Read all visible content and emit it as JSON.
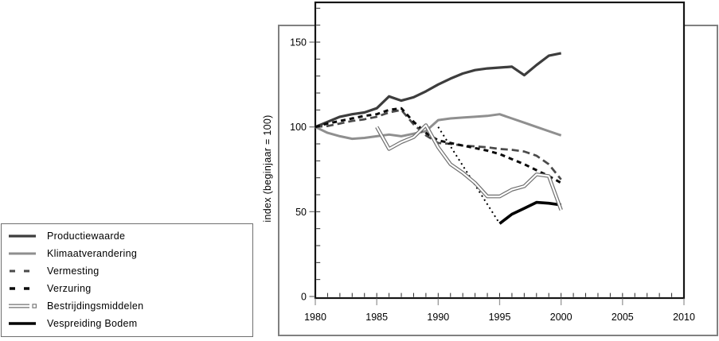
{
  "figure": {
    "background": "#ffffff",
    "frame_color": "#808080",
    "axis_color": "#1a1a1a"
  },
  "legend": {
    "items": [
      {
        "label": "Productiewaarde"
      },
      {
        "label": "Klimaatverandering"
      },
      {
        "label": "Vermesting"
      },
      {
        "label": "Verzuring"
      },
      {
        "label": "Bestrijdingsmiddelen"
      },
      {
        "label": "Vespreiding Bodem"
      }
    ]
  },
  "chart_data": {
    "type": "line",
    "title": "",
    "xlabel": "",
    "ylabel": "index (beginjaar = 100)",
    "xlim": [
      1980,
      2010
    ],
    "ylim": [
      0,
      173
    ],
    "x_ticks": [
      1980,
      1985,
      1990,
      1995,
      2000,
      2005,
      2010
    ],
    "y_ticks": [
      0,
      50,
      100,
      150
    ],
    "x_minor_step": 1,
    "y_minor_step": 10,
    "grid": false,
    "legend_position": "outside-bottom-left",
    "series": [
      {
        "name": "Productiewaarde",
        "style": "solid",
        "color": "#3d3d3d",
        "width": 3.2,
        "x": [
          1980,
          1981,
          1982,
          1983,
          1984,
          1985,
          1986,
          1987,
          1988,
          1989,
          1990,
          1991,
          1992,
          1993,
          1994,
          1995,
          1996,
          1997,
          1998,
          1999,
          2000
        ],
        "y": [
          100,
          103,
          106,
          107.5,
          108.5,
          111,
          118,
          115.5,
          117.5,
          121,
          125,
          128.5,
          131.5,
          133.5,
          134.5,
          135,
          135.5,
          130.5,
          136.5,
          142,
          143.5
        ]
      },
      {
        "name": "Klimaatverandering",
        "style": "solid",
        "color": "#8f8f8f",
        "width": 3,
        "x": [
          1980,
          1981,
          1982,
          1983,
          1984,
          1985,
          1986,
          1987,
          1988,
          1989,
          1990,
          1991,
          1992,
          1993,
          1994,
          1995,
          1996,
          1997,
          1998,
          1999,
          2000
        ],
        "y": [
          100,
          96.5,
          94.5,
          93,
          93.5,
          94.5,
          95.5,
          94.5,
          96,
          97.5,
          104,
          105,
          105.5,
          106,
          106.5,
          107.5,
          105,
          102.5,
          100,
          97.5,
          95
        ]
      },
      {
        "name": "Vermesting",
        "style": "dashed",
        "color": "#4a4a4a",
        "width": 2.7,
        "dash": "9,5",
        "x": [
          1980,
          1981,
          1982,
          1983,
          1984,
          1985,
          1986,
          1987,
          1988,
          1989,
          1990,
          1991,
          1992,
          1993,
          1994,
          1995,
          1996,
          1997,
          1998,
          1999,
          2000
        ],
        "y": [
          100,
          100.5,
          102,
          103.5,
          104.5,
          106,
          108.5,
          110,
          101.5,
          95,
          90.5,
          90,
          89,
          88.5,
          88,
          87,
          86.5,
          85.5,
          83,
          78,
          69
        ]
      },
      {
        "name": "Verzuring",
        "style": "dashed",
        "color": "#0a0a0a",
        "width": 3,
        "dash": "6,5",
        "x": [
          1980,
          1981,
          1982,
          1983,
          1984,
          1985,
          1986,
          1987,
          1988,
          1989,
          1990,
          1991,
          1992,
          1993,
          1994,
          1995,
          1996,
          1997,
          1998,
          1999,
          2000
        ],
        "y": [
          100,
          102,
          103.5,
          105,
          106.5,
          107.5,
          110,
          111,
          103,
          96.5,
          92,
          90.5,
          89,
          87.5,
          86,
          84,
          81,
          78,
          74.5,
          71,
          67
        ]
      },
      {
        "name": "Bestrijdingsmiddelen",
        "style": "outline",
        "color": "#6f6f6f",
        "core_color": "#ffffff",
        "width": 4.6,
        "core_width": 2.2,
        "x": [
          1985,
          1986,
          1987,
          1988,
          1989,
          1990,
          1991,
          1992,
          1993,
          1994,
          1995,
          1996,
          1997,
          1998,
          1999,
          2000
        ],
        "y": [
          100,
          87,
          91,
          94,
          101,
          88,
          78,
          73,
          67,
          59,
          59,
          63,
          65,
          72,
          71,
          51
        ]
      },
      {
        "name": "Vespreiding Bodem",
        "style": "solid",
        "color": "#000000",
        "width": 3.6,
        "x": [
          1995,
          1996,
          1997,
          1998,
          1999,
          2000
        ],
        "y": [
          43,
          48.5,
          52,
          55.5,
          55,
          54
        ],
        "pre_segment": {
          "style": "dotted",
          "color": "#000000",
          "width": 2,
          "dash": "2,4",
          "x": [
            1990,
            1995
          ],
          "y": [
            100,
            43
          ]
        }
      }
    ]
  },
  "ticks_style": {
    "x_major_outside": "#999999",
    "y_major_outside": "#777777",
    "minor_inside": "#2a2a2a"
  }
}
